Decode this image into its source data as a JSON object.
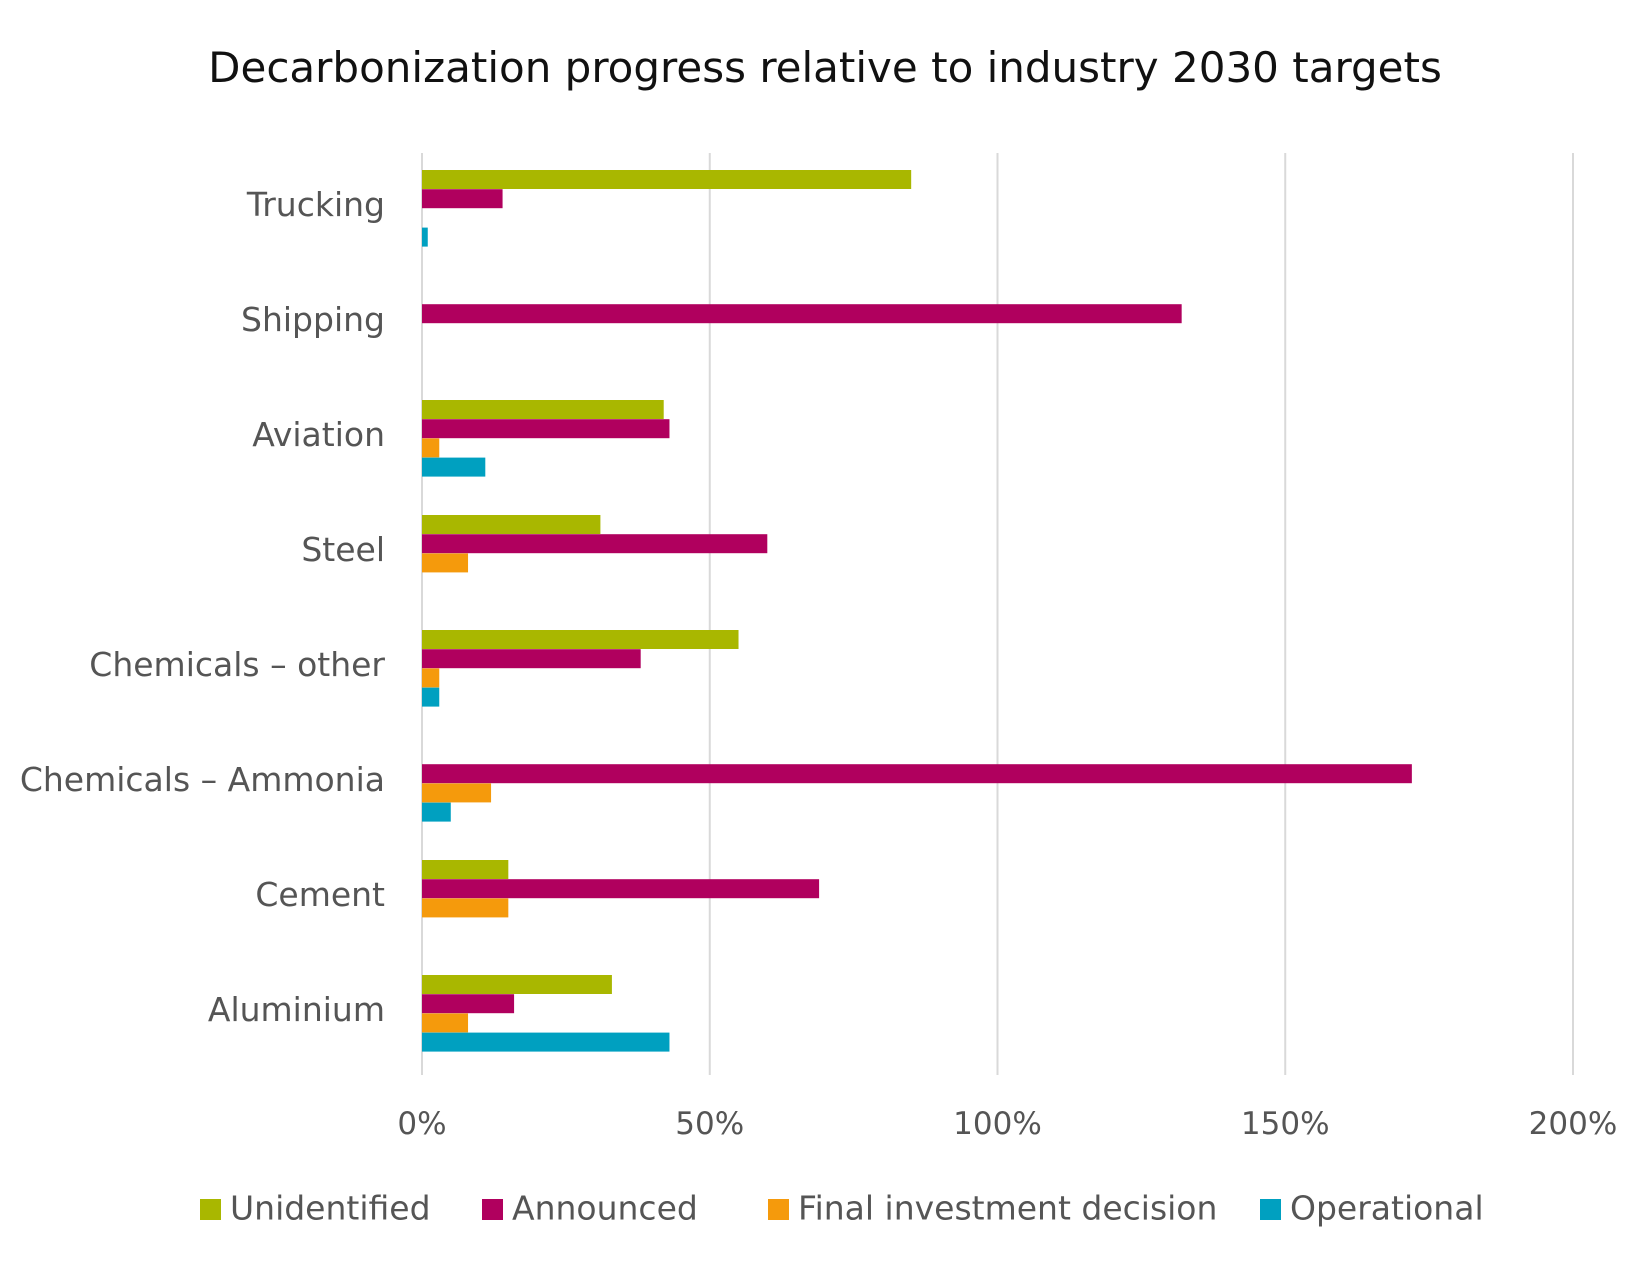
{
  "chart_data": {
    "type": "bar",
    "orientation": "horizontal",
    "title": "Decarbonization progress relative to industry 2030 targets",
    "xlabel": "",
    "ylabel": "",
    "xlim": [
      0,
      200
    ],
    "x_ticks": [
      "0%",
      "50%",
      "100%",
      "150%",
      "200%"
    ],
    "x_tick_values": [
      0,
      50,
      100,
      150,
      200
    ],
    "grid": true,
    "legend_position": "bottom",
    "categories": [
      "Trucking",
      "Shipping",
      "Aviation",
      "Steel",
      "Chemicals – other",
      "Chemicals – Ammonia",
      "Cement",
      "Aluminium"
    ],
    "series": [
      {
        "name": "Unidentified",
        "color": "#a9b700",
        "values": [
          85,
          0,
          42,
          31,
          55,
          0,
          15,
          33
        ]
      },
      {
        "name": "Announced",
        "color": "#b0005e",
        "values": [
          14,
          132,
          43,
          60,
          38,
          172,
          69,
          16
        ]
      },
      {
        "name": "Final investment decision",
        "color": "#f59a0c",
        "values": [
          0,
          0,
          3,
          8,
          3,
          12,
          15,
          8
        ]
      },
      {
        "name": "Operational",
        "color": "#00a0c0",
        "values": [
          1,
          0,
          11,
          0,
          3,
          5,
          0,
          43
        ]
      }
    ]
  }
}
